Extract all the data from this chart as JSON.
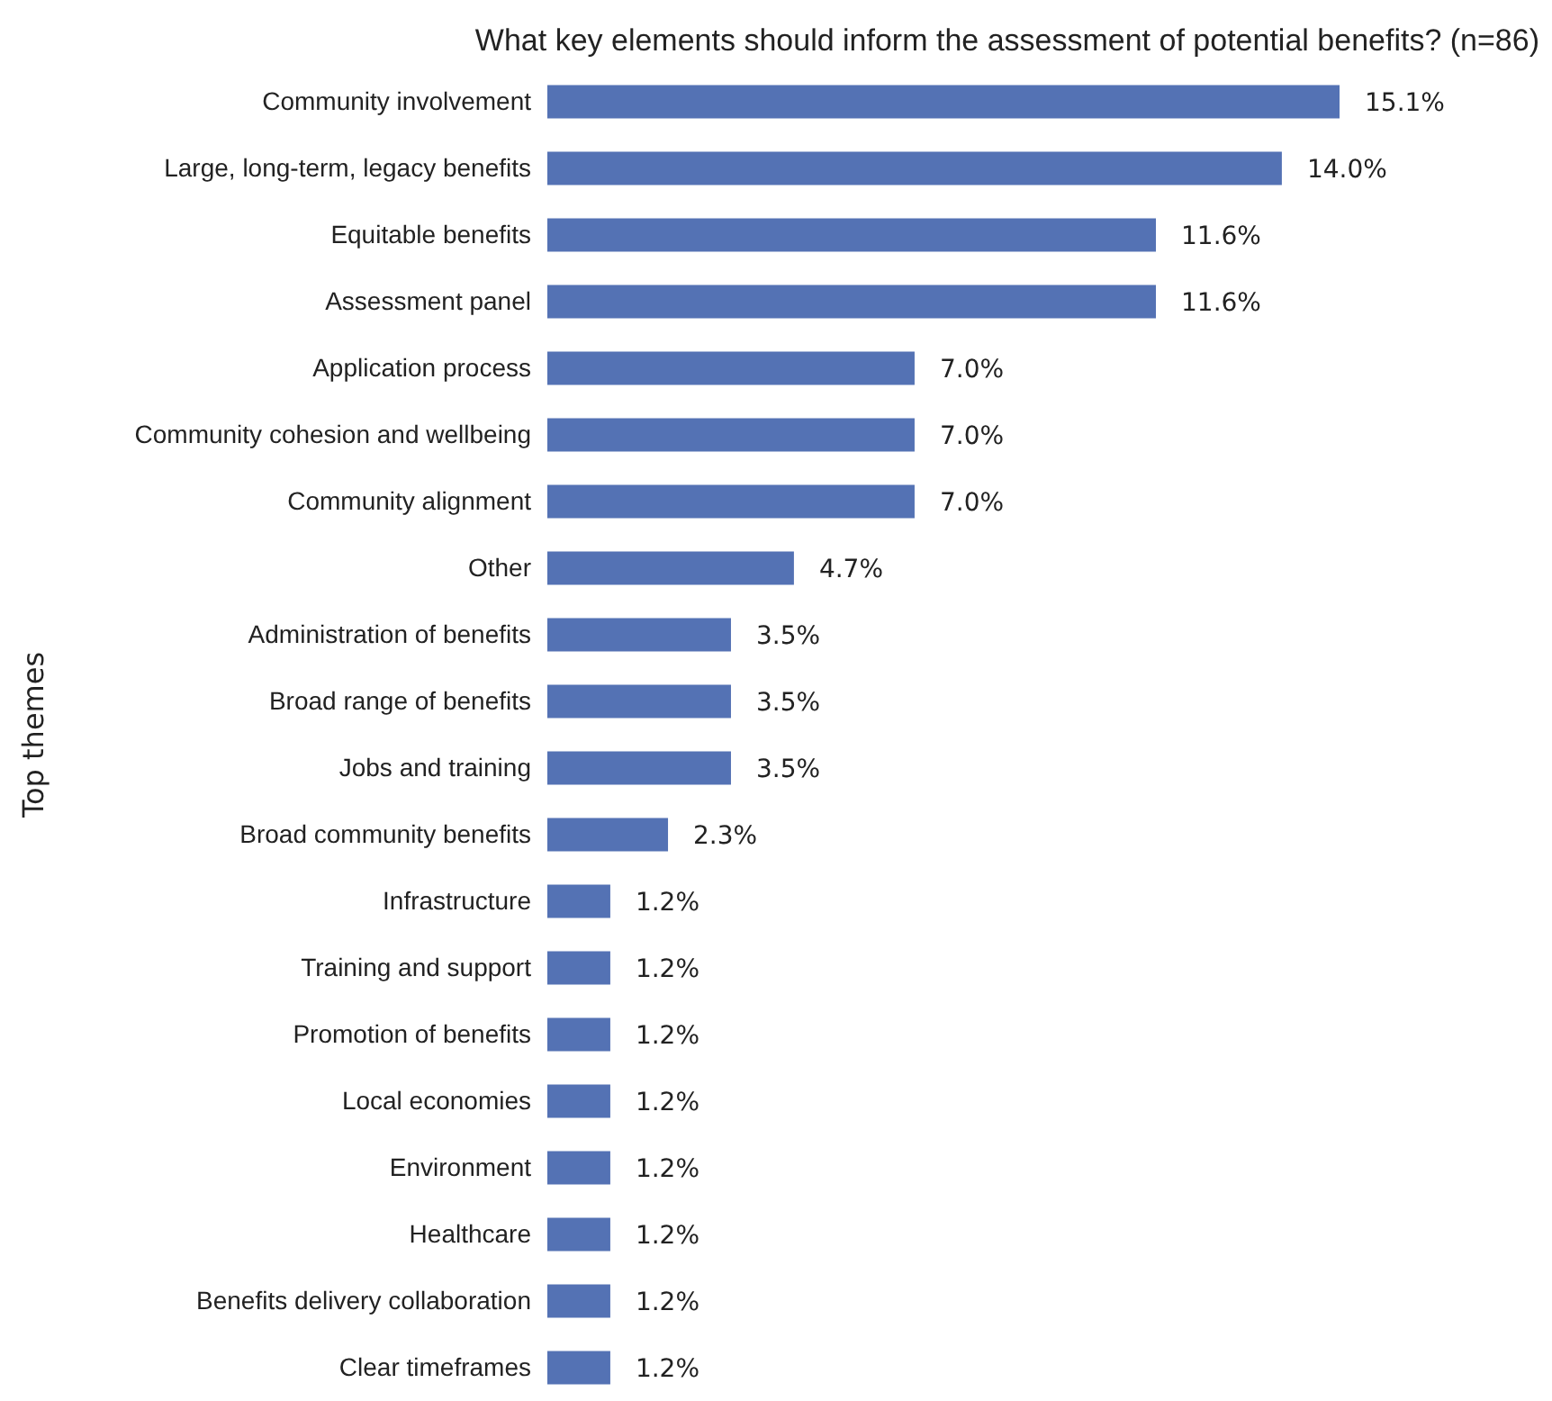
{
  "chart_data": {
    "type": "bar",
    "orientation": "horizontal",
    "title": "What key elements should inform the assessment of potential benefits? (n=86)",
    "ylabel": "Top themes",
    "categories": [
      "Community involvement",
      "Large, long-term, legacy benefits",
      "Equitable benefits",
      "Assessment panel",
      "Application process",
      "Community cohesion and wellbeing",
      "Community alignment",
      "Other",
      "Administration of benefits",
      "Broad range of benefits",
      "Jobs and training",
      "Broad community benefits",
      "Infrastructure",
      "Training and support",
      "Promotion of benefits",
      "Local economies",
      "Environment",
      "Healthcare",
      "Benefits delivery collaboration",
      "Clear timeframes"
    ],
    "values": [
      15.1,
      14.0,
      11.6,
      11.6,
      7.0,
      7.0,
      7.0,
      4.7,
      3.5,
      3.5,
      3.5,
      2.3,
      1.2,
      1.2,
      1.2,
      1.2,
      1.2,
      1.2,
      1.2,
      1.2
    ],
    "value_labels": [
      "15.1%",
      "14.0%",
      "11.6%",
      "11.6%",
      "7.0%",
      "7.0%",
      "7.0%",
      "4.7%",
      "3.5%",
      "3.5%",
      "3.5%",
      "2.3%",
      "1.2%",
      "1.2%",
      "1.2%",
      "1.2%",
      "1.2%",
      "1.2%",
      "1.2%",
      "1.2%"
    ],
    "color": "#5472b4"
  }
}
